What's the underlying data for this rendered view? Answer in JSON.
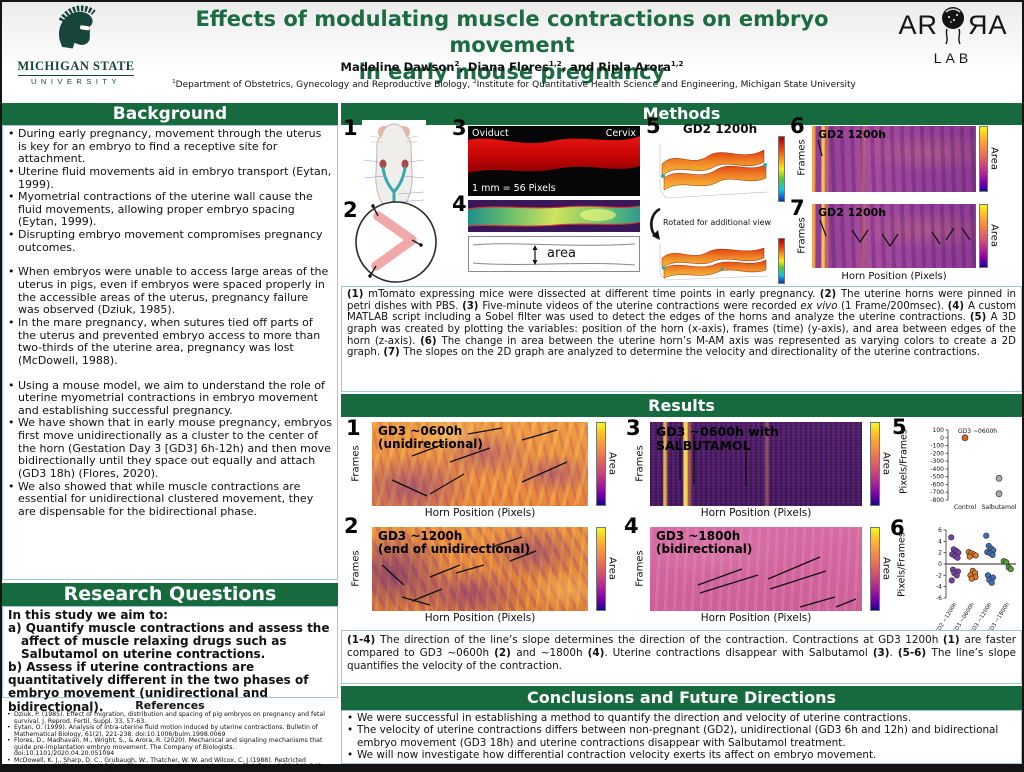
{
  "header": {
    "title_line1": "Effects of modulating muscle contractions on embryo movement",
    "title_line2": "in early mouse pregnancy",
    "authors": [
      [
        "n",
        "Madeline Dawson"
      ],
      [
        "s",
        "2"
      ],
      [
        "n",
        ", Diana Flores"
      ],
      [
        "s",
        "1,2"
      ],
      [
        "n",
        ", and Ripla Arora"
      ],
      [
        "s",
        "1,2"
      ]
    ],
    "affiliations": [
      [
        "s",
        "1"
      ],
      [
        "n",
        "Department of Obstetrics, Gynecology and Reproductive Biology, "
      ],
      [
        "s",
        "2"
      ],
      [
        "n",
        "Institute for Quantitative Health Science and Engineering, Michigan State University"
      ]
    ],
    "msu_logo": {
      "line1": "MICHIGAN STATE",
      "line2": "UNIVERSITY"
    },
    "lab_logo": {
      "left": "AR",
      "right": "ЯA",
      "sub": "LAB"
    }
  },
  "background": {
    "heading": "Background",
    "bullets": [
      {
        "t": "During early pregnancy, movement through the uterus is key for an embryo to find a receptive site for attachment."
      },
      {
        "t": "Uterine fluid movements aid in embryo transport (Eytan, 1999)."
      },
      {
        "t": "Myometrial contractions of the uterine wall cause the fluid movements, allowing proper embryo spacing (Eytan, 1999)."
      },
      {
        "t": "Disrupting embryo movement compromises pregnancy outcomes."
      },
      {
        "t": "When embryos were unable to access large areas of the uterus in pigs, even if embryos were spaced properly in the accessible areas of the uterus, pregnancy failure was observed (Dziuk, 1985).",
        "gap": true
      },
      {
        "t": "In the mare pregnancy, when sutures tied off parts of the uterus and prevented embryo access to more than two-thirds of the uterine area,  pregnancy was lost (McDowell, 1988)."
      },
      {
        "t": "Using a mouse model, we aim to understand the role of uterine myometrial contractions in embryo movement and establishing successful pregnancy.",
        "gap": true
      },
      {
        "t": "We have shown that in early mouse pregnancy, embryos first move unidirectionally as a cluster to the center of the horn (Gestation Day 3 [GD3] 6h-12h) and then move bidirectionally until they space out equally and attach (GD3 18h) (Flores, 2020)."
      },
      {
        "t": "We also showed that while muscle contractions are essential for unidirectional clustered movement, they are dispensable for the bidirectional phase."
      }
    ]
  },
  "research_questions": {
    "heading": "Research Questions",
    "lines": [
      "In this study we aim to:",
      "a) Quantify muscle contractions and assess the affect of muscle relaxing drugs such as Salbutamol on uterine contractions.",
      "b) Assess if uterine contractions are quantitatively different in the two phases of embryo movement (unidirectional and bidirectional)."
    ]
  },
  "references": {
    "heading": "References",
    "items": [
      "Dziuk, P. (1985). Effect of migration, distribution and spacing of pig embryos on pregnancy and fetal survival. J. Reprod. Fertil. Suppl. 33, 57-63.",
      "Eytan, O. (1999). Analysis of intra-uterine fluid motion induced by uterine contractions. Bulletin of Mathematical Biology, 61(2), 221-238. doi:10.1006/bulm.1998.0069",
      "Flores, D., Madhavan, M., Wright, S., & Arora, R. (2020). Mechanical and signaling mechanisms that guide pre-implantation embryo movement. The Company of Biologists. doi:10.1101/2020.04.20.051094",
      "McDowell, K. J., Sharp, D. C., Grubaugh, W., Thatcher, W. W. and Wilcox, C. J.(1988). Restricted conceptus mobility results in failure of pregnancy maintenance in mares. Biol. Reprod. 39, 340-348. doi:10.1095/biolreprod39.2.340"
    ]
  },
  "methods": {
    "heading": "Methods",
    "num": [
      "1",
      "2",
      "3",
      "4",
      "5",
      "6",
      "7"
    ],
    "p3": {
      "left_label": "Oviduct",
      "right_label": "Cervix",
      "scale": "1 mm = 56 Pixels"
    },
    "p4": {
      "area_label": "area"
    },
    "p5": {
      "title": "GD2 1200h",
      "rotated_note": "Rotated for additional view"
    },
    "p6": {
      "title": "GD2 1200h"
    },
    "p7": {
      "title": "GD2 1200h"
    },
    "axis": {
      "frames": "Frames",
      "area": "Area",
      "horn": "Horn Position (Pixels)"
    },
    "caption": [
      [
        "b",
        "(1) "
      ],
      [
        "n",
        "mTomato expressing mice were dissected at different time points in early pregnancy. "
      ],
      [
        "b",
        "(2) "
      ],
      [
        "n",
        "The uterine horns were pinned in petri dishes with PBS. "
      ],
      [
        "b",
        "(3) "
      ],
      [
        "n",
        "Five-minute videos of the uterine contractions were recorded "
      ],
      [
        "i",
        "ex vivo"
      ],
      [
        "n",
        " (1 Frame/200msec). "
      ],
      [
        "b",
        "(4) "
      ],
      [
        "n",
        "A custom MATLAB script including a Sobel filter was used to detect the edges of the horns and analyze the uterine contractions. "
      ],
      [
        "b",
        "(5) "
      ],
      [
        "n",
        "A 3D graph was created by plotting the variables: position of the horn (x-axis), frames (time) (y-axis), and area between edges of the horn (z-axis). "
      ],
      [
        "b",
        "(6) "
      ],
      [
        "n",
        "The change in area between the uterine horn’s M-AM axis was represented as varying colors to create a 2D graph. "
      ],
      [
        "b",
        "(7) "
      ],
      [
        "n",
        "The slopes on the 2D graph are analyzed to determine the velocity and directionality of the uterine contractions."
      ]
    ]
  },
  "results": {
    "heading": "Results",
    "num": [
      "1",
      "2",
      "3",
      "4",
      "5",
      "6"
    ],
    "p1": {
      "title": "GD3 ~0600h",
      "subtitle": "(unidirectional)"
    },
    "p2": {
      "title": "GD3 ~1200h",
      "subtitle": "(end of unidirectional)"
    },
    "p3": {
      "title": "GD3 ~0600h with SALBUTAMOL"
    },
    "p4": {
      "title": "GD3 ~1800h",
      "subtitle": "(bidirectional)"
    },
    "axis": {
      "frames": "Frames",
      "area": "Area",
      "horn": "Horn Position (Pixels)"
    },
    "caption": [
      [
        "b",
        "(1-4) "
      ],
      [
        "n",
        "The direction of the line’s slope determines the direction of the contraction. Contractions at GD3 1200h "
      ],
      [
        "b",
        "(1) "
      ],
      [
        "n",
        "are faster compared to GD3 ~0600h "
      ],
      [
        "b",
        "(2) "
      ],
      [
        "n",
        "and  ~1800h "
      ],
      [
        "b",
        "(4)"
      ],
      [
        "n",
        ". Uterine contractions disappear with Salbutamol "
      ],
      [
        "b",
        "(3)"
      ],
      [
        "n",
        ". "
      ],
      [
        "b",
        "(5-6) "
      ],
      [
        "n",
        "The line’s slope quantifies the velocity of the contraction."
      ]
    ]
  },
  "conclusions": {
    "heading": "Conclusions and Future Directions",
    "bullets": [
      "We were successful in establishing a method to quantify the direction and velocity of uterine contractions.",
      "The velocity of uterine contractions differs between non-pregnant (GD2), unidirectional (GD3 6h and 12h) and bidirectional embryo movement (GD3 18h) and uterine contractions disappear with Salbutamol treatment.",
      "We will now investigate how differential contraction velocity exerts its affect on embryo movement."
    ]
  },
  "chart_data": [
    {
      "type": "scatter",
      "id": "velocity-control-vs-salbutamol",
      "title": "GD3 ~0600h",
      "ylabel": "Pixels/Frames",
      "ylim": [
        -800,
        100
      ],
      "yticks": [
        100,
        0,
        -100,
        -200,
        -300,
        -400,
        -500,
        -600,
        -700,
        -800
      ],
      "categories": [
        "Control",
        "Salbutamol"
      ],
      "series": [
        {
          "name": "Control",
          "color": "#e2641f",
          "values": [
            0
          ]
        },
        {
          "name": "Salbutamol",
          "color": "#ababab",
          "values": [
            -520,
            -720
          ]
        }
      ]
    },
    {
      "type": "scatter",
      "id": "velocity-by-stage",
      "ylabel": "Pixels/Frames",
      "ylim": [
        -6,
        6
      ],
      "yticks": [
        -6,
        -4,
        -2,
        0,
        2,
        4,
        6
      ],
      "zero_line": true,
      "categories": [
        "GD2 ~1200h",
        "GD3 ~0600h",
        "GD3 ~1200h",
        "GD3 ~1800h"
      ],
      "series": [
        {
          "name": "GD2 ~1200h",
          "color": "#7a3fa8",
          "values": [
            4.7,
            2.6,
            2.3,
            2.0,
            1.7,
            1.4,
            1.1,
            -1.0,
            -1.3,
            -1.6,
            -2.0,
            -2.9
          ]
        },
        {
          "name": "GD3 ~0600h",
          "color": "#e87a1e",
          "values": [
            2.1,
            1.9,
            1.7,
            1.5,
            1.3,
            -1.2,
            -1.6,
            -2.0,
            -2.3,
            -2.6
          ]
        },
        {
          "name": "GD3 ~1200h",
          "color": "#3f6fc0",
          "values": [
            5.0,
            3.2,
            2.7,
            2.4,
            2.1,
            1.9,
            1.6,
            -2.0,
            -2.4,
            -2.8,
            -3.3
          ]
        },
        {
          "name": "GD3 ~1800h",
          "color": "#55a02e",
          "values": [
            0.5,
            0.3,
            -0.6,
            -0.9
          ]
        }
      ]
    }
  ]
}
